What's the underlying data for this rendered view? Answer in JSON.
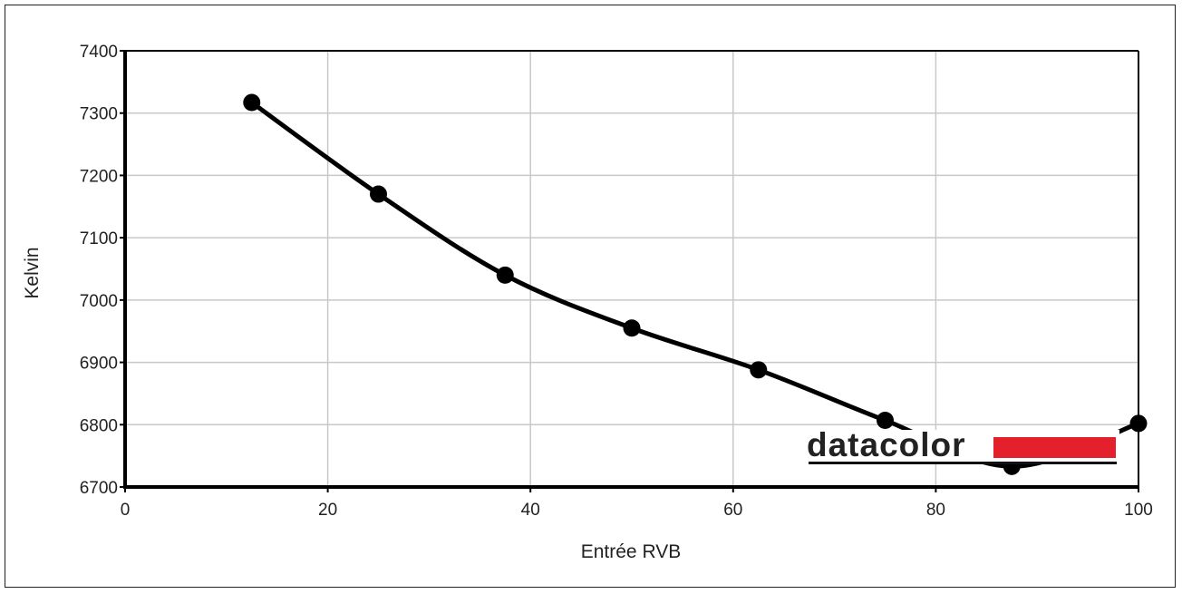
{
  "chart_data": {
    "type": "line",
    "title": "",
    "xlabel": "Entrée RVB",
    "ylabel": "Kelvin",
    "xlim": [
      0,
      100
    ],
    "ylim": [
      6700,
      7400
    ],
    "x_ticks": [
      0,
      20,
      40,
      60,
      80,
      100
    ],
    "y_ticks": [
      6700,
      6800,
      6900,
      7000,
      7100,
      7200,
      7300,
      7400
    ],
    "grid": true,
    "series": [
      {
        "x": [
          12.5,
          25,
          37.5,
          50,
          62.5,
          75,
          87.5,
          100
        ],
        "y": [
          7317,
          7170,
          7040,
          6955,
          6888,
          6807,
          6733,
          6802
        ]
      }
    ],
    "colors": {
      "line": "#000000",
      "grid": "#c8c8c8",
      "logo_bar": "#e3202b"
    }
  },
  "logo": {
    "text": "datacolor"
  }
}
